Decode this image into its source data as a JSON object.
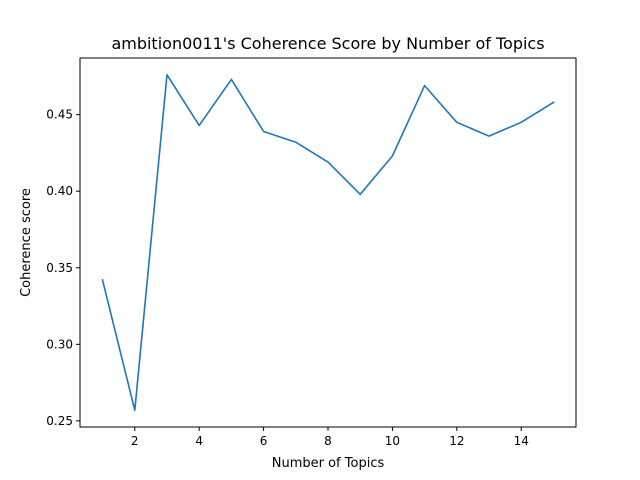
{
  "chart_data": {
    "type": "line",
    "title": "ambition0011's Coherence Score by Number of Topics",
    "xlabel": "Number of Topics",
    "ylabel": "Coherence score",
    "x": [
      1,
      2,
      3,
      4,
      5,
      6,
      7,
      8,
      9,
      10,
      11,
      12,
      13,
      14,
      15
    ],
    "series": [
      {
        "values": [
          0.342,
          0.257,
          0.476,
          0.443,
          0.473,
          0.439,
          0.432,
          0.419,
          0.398,
          0.423,
          0.469,
          0.445,
          0.436,
          0.445,
          0.458
        ]
      }
    ],
    "xticks": [
      2,
      4,
      6,
      8,
      10,
      12,
      14
    ],
    "xtick_labels": [
      "2",
      "4",
      "6",
      "8",
      "10",
      "12",
      "14"
    ],
    "yticks": [
      0.25,
      0.3,
      0.35,
      0.4,
      0.45
    ],
    "ytick_labels": [
      "0.25",
      "0.30",
      "0.35",
      "0.40",
      "0.45"
    ],
    "xlim": [
      0.3,
      15.7
    ],
    "ylim": [
      0.246,
      0.487
    ],
    "grid": false,
    "line_color": "#1f77b4"
  }
}
